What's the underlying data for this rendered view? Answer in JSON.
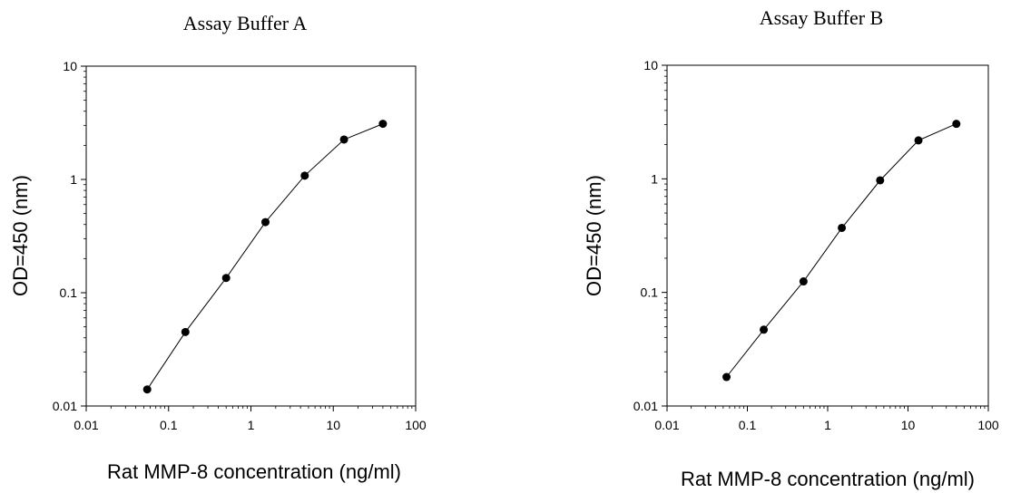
{
  "chart_data": [
    {
      "type": "line",
      "title": "Assay Buffer A",
      "xlabel": "Rat MMP-8 concentration (ng/ml)",
      "ylabel": "OD=450 (nm)",
      "xscale": "log",
      "yscale": "log",
      "xlim": [
        0.01,
        100
      ],
      "ylim": [
        0.01,
        10
      ],
      "xticks": [
        "0.01",
        "0.1",
        "1",
        "10",
        "100"
      ],
      "yticks": [
        "0.01",
        "0.1",
        "1",
        "10"
      ],
      "grid": false,
      "series": [
        {
          "markers": true,
          "color": "#000000",
          "x": [
            0.055,
            0.16,
            0.5,
            1.5,
            4.5,
            13.5,
            40
          ],
          "y": [
            0.014,
            0.045,
            0.135,
            0.42,
            1.08,
            2.25,
            3.1
          ]
        }
      ]
    },
    {
      "type": "line",
      "title": "Assay Buffer B",
      "xlabel": "Rat MMP-8 concentration (ng/ml)",
      "ylabel": "OD=450 (nm)",
      "xscale": "log",
      "yscale": "log",
      "xlim": [
        0.01,
        100
      ],
      "ylim": [
        0.01,
        10
      ],
      "xticks": [
        "0.01",
        "0.1",
        "1",
        "10",
        "100"
      ],
      "yticks": [
        "0.01",
        "0.1",
        "1",
        "10"
      ],
      "grid": false,
      "series": [
        {
          "markers": true,
          "color": "#000000",
          "x": [
            0.055,
            0.16,
            0.5,
            1.5,
            4.5,
            13.5,
            40
          ],
          "y": [
            0.018,
            0.047,
            0.125,
            0.37,
            0.97,
            2.18,
            3.05
          ]
        }
      ]
    }
  ]
}
